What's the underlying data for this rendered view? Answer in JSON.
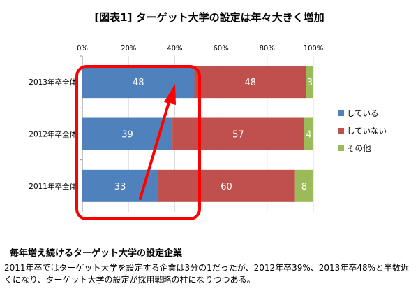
{
  "colors": {
    "yes": "#4f81bd",
    "no": "#c0504d",
    "other": "#9bbb59",
    "highlight": "#ff0000",
    "grid": "#d9d9d9"
  },
  "chart_data": {
    "type": "bar",
    "orientation": "horizontal",
    "stacked": "percent",
    "title": "[図表1] ターゲット大学の設定は年々大きく増加",
    "categories": [
      "2013年卒全体",
      "2012年卒全体",
      "2011年卒全体"
    ],
    "series": [
      {
        "name": "している",
        "values": [
          48,
          39,
          33
        ],
        "color": "#4f81bd"
      },
      {
        "name": "していない",
        "values": [
          48,
          57,
          60
        ],
        "color": "#c0504d"
      },
      {
        "name": "その他",
        "values": [
          3,
          4,
          8
        ],
        "color": "#9bbb59"
      }
    ],
    "xticks": [
      "0%",
      "20%",
      "40%",
      "60%",
      "80%",
      "100%"
    ],
    "xlim": [
      0,
      100
    ],
    "legend_position": "right",
    "annotations": [
      "rounded red rectangle around the 'している' segments",
      "red arrow from 2011 up to 2013 'している' segment"
    ]
  },
  "caption": {
    "title": "毎年増え続けるターゲット大学の設定企業",
    "body": "2011年卒ではターゲット大学を設定する企業は3分の1だったが、2012年卒39%、2013年卒48%と半数近くになり、ターゲット大学の設定が採用戦略の柱になりつつある。"
  }
}
